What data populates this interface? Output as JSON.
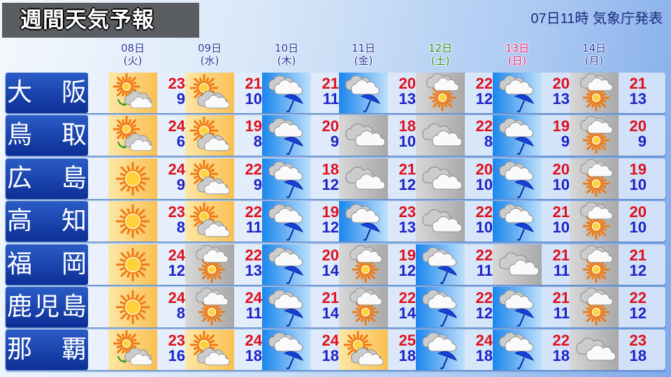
{
  "header": {
    "title": "週間天気予報",
    "issued": "07日11時 気象庁発表"
  },
  "dates": [
    {
      "day": "08日",
      "wd": "(火)",
      "color": "#223399"
    },
    {
      "day": "09日",
      "wd": "(水)",
      "color": "#223399"
    },
    {
      "day": "10日",
      "wd": "(木)",
      "color": "#223399"
    },
    {
      "day": "11日",
      "wd": "(金)",
      "color": "#223399"
    },
    {
      "day": "12日",
      "wd": "(土)",
      "color": "#1f8a1f"
    },
    {
      "day": "13日",
      "wd": "(日)",
      "color": "#e0206a"
    },
    {
      "day": "14日",
      "wd": "(月)",
      "color": "#223399"
    }
  ],
  "colors": {
    "high": "#e0101c",
    "low": "#1b22c8",
    "city_bg": "#0c2f96"
  },
  "rows": [
    {
      "city": "大阪",
      "days": [
        {
          "icon": "sun-later-cloud",
          "hi": "23",
          "lo": "9"
        },
        {
          "icon": "sun-cloud",
          "hi": "21",
          "lo": "10"
        },
        {
          "icon": "rain",
          "hi": "21",
          "lo": "11"
        },
        {
          "icon": "rain",
          "hi": "20",
          "lo": "13"
        },
        {
          "icon": "cloud-sun",
          "hi": "22",
          "lo": "12"
        },
        {
          "icon": "rain",
          "hi": "20",
          "lo": "13"
        },
        {
          "icon": "cloud-sun",
          "hi": "21",
          "lo": "13"
        }
      ]
    },
    {
      "city": "鳥取",
      "days": [
        {
          "icon": "sun-later-cloud",
          "hi": "24",
          "lo": "6"
        },
        {
          "icon": "sun-cloud",
          "hi": "19",
          "lo": "8"
        },
        {
          "icon": "rain",
          "hi": "20",
          "lo": "9"
        },
        {
          "icon": "cloud",
          "hi": "18",
          "lo": "10"
        },
        {
          "icon": "cloud",
          "hi": "22",
          "lo": "8"
        },
        {
          "icon": "rain",
          "hi": "19",
          "lo": "9"
        },
        {
          "icon": "cloud-sun",
          "hi": "20",
          "lo": "9"
        }
      ]
    },
    {
      "city": "広島",
      "days": [
        {
          "icon": "sun",
          "hi": "24",
          "lo": "9"
        },
        {
          "icon": "sun-cloud",
          "hi": "22",
          "lo": "9"
        },
        {
          "icon": "rain",
          "hi": "18",
          "lo": "12"
        },
        {
          "icon": "cloud",
          "hi": "21",
          "lo": "12"
        },
        {
          "icon": "cloud",
          "hi": "20",
          "lo": "10"
        },
        {
          "icon": "rain",
          "hi": "20",
          "lo": "10"
        },
        {
          "icon": "cloud-sun",
          "hi": "19",
          "lo": "10"
        }
      ]
    },
    {
      "city": "高知",
      "days": [
        {
          "icon": "sun",
          "hi": "23",
          "lo": "8"
        },
        {
          "icon": "sun-cloud",
          "hi": "22",
          "lo": "11"
        },
        {
          "icon": "rain",
          "hi": "19",
          "lo": "12"
        },
        {
          "icon": "rain",
          "hi": "23",
          "lo": "13"
        },
        {
          "icon": "cloud",
          "hi": "22",
          "lo": "10"
        },
        {
          "icon": "rain",
          "hi": "21",
          "lo": "10"
        },
        {
          "icon": "cloud-sun",
          "hi": "20",
          "lo": "10"
        }
      ]
    },
    {
      "city": "福岡",
      "days": [
        {
          "icon": "sun",
          "hi": "24",
          "lo": "12"
        },
        {
          "icon": "cloud-sun",
          "hi": "22",
          "lo": "13"
        },
        {
          "icon": "rain",
          "hi": "20",
          "lo": "14"
        },
        {
          "icon": "cloud-sun",
          "hi": "19",
          "lo": "12"
        },
        {
          "icon": "rain",
          "hi": "22",
          "lo": "11"
        },
        {
          "icon": "cloud",
          "hi": "21",
          "lo": "11"
        },
        {
          "icon": "cloud-sun",
          "hi": "21",
          "lo": "12"
        }
      ]
    },
    {
      "city": "鹿児島",
      "days": [
        {
          "icon": "sun",
          "hi": "24",
          "lo": "8"
        },
        {
          "icon": "cloud-sun",
          "hi": "24",
          "lo": "11"
        },
        {
          "icon": "rain",
          "hi": "21",
          "lo": "14"
        },
        {
          "icon": "cloud-sun",
          "hi": "22",
          "lo": "14"
        },
        {
          "icon": "rain",
          "hi": "22",
          "lo": "12"
        },
        {
          "icon": "rain",
          "hi": "21",
          "lo": "11"
        },
        {
          "icon": "cloud-sun",
          "hi": "22",
          "lo": "12"
        }
      ]
    },
    {
      "city": "那覇",
      "days": [
        {
          "icon": "sun-later-cloud",
          "hi": "23",
          "lo": "16"
        },
        {
          "icon": "sun-cloud",
          "hi": "24",
          "lo": "18"
        },
        {
          "icon": "rain",
          "hi": "24",
          "lo": "18"
        },
        {
          "icon": "sun-cloud",
          "hi": "25",
          "lo": "18"
        },
        {
          "icon": "rain",
          "hi": "24",
          "lo": "18"
        },
        {
          "icon": "rain",
          "hi": "22",
          "lo": "18"
        },
        {
          "icon": "cloud",
          "hi": "23",
          "lo": "18"
        }
      ]
    }
  ]
}
